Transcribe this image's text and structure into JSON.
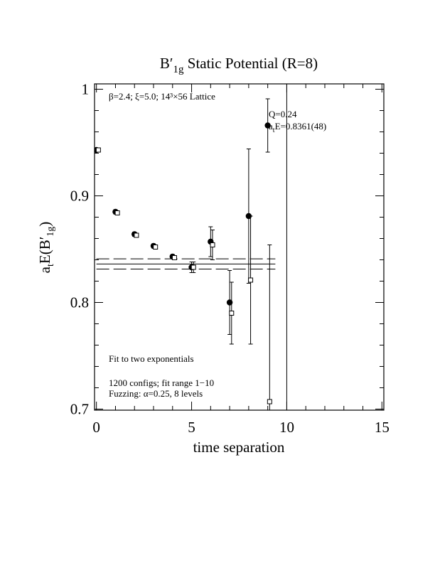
{
  "chart_data": {
    "type": "scatter",
    "title": {
      "base": "B′",
      "sub": "1g",
      "rest": " Static Potential (R=8)"
    },
    "xlabel": "time separation",
    "ylabel": {
      "a": "a",
      "a_sub": "t",
      "mid": "E(B′",
      "sub": "1g",
      "end": ")"
    },
    "xlim": [
      -0.1,
      15.1
    ],
    "ylim": [
      0.699,
      1.005
    ],
    "xticks": [
      0,
      5,
      10,
      15
    ],
    "xminorticks": [
      1,
      2,
      3,
      4,
      6,
      7,
      8,
      9,
      11,
      12,
      13,
      14
    ],
    "yticks": [
      0.7,
      0.8,
      0.9,
      1
    ],
    "yminorticks": [
      0.72,
      0.74,
      0.76,
      0.78,
      0.82,
      0.84,
      0.86,
      0.88,
      0.92,
      0.94,
      0.96,
      0.98
    ],
    "series": [
      {
        "marker": "circle",
        "color": "#000000",
        "x": [
          0,
          1,
          2,
          3,
          4,
          5,
          6,
          7,
          8,
          9
        ],
        "values": [
          0.943,
          0.885,
          0.864,
          0.853,
          0.843,
          0.833,
          0.857,
          0.8,
          0.881,
          0.966
        ],
        "errors": [
          0.002,
          0.002,
          0.002,
          0.002,
          0.002,
          0.005,
          0.014,
          0.03,
          0.063,
          0.025
        ]
      },
      {
        "marker": "square",
        "color": "#000000",
        "x": [
          0.1,
          1.1,
          2.1,
          3.1,
          4.1,
          5.1,
          6.1,
          7.1,
          8.1,
          9.1
        ],
        "values": [
          0.943,
          0.884,
          0.863,
          0.852,
          0.842,
          0.833,
          0.854,
          0.79,
          0.821,
          0.707
        ],
        "errors": [
          0.002,
          0.002,
          0.002,
          0.002,
          0.002,
          0.005,
          0.014,
          0.029,
          0.06,
          0.147
        ]
      }
    ],
    "fit": {
      "value": 0.8361,
      "error": 0.0048,
      "x": [
        0,
        9.4
      ]
    },
    "vline": 10,
    "annotations": {
      "lattice": "β=2.4; ξ=5.0; 14³×56 Lattice",
      "q": "Q=0.24",
      "energy": {
        "a": "a",
        "sub": "t",
        "rest": "E=0.8361(48)"
      },
      "method": "Fit to two exponentials",
      "configs": "1200 configs; fit range 1−10",
      "fuzzing": "Fuzzing: α=0.25, 8 levels"
    }
  }
}
